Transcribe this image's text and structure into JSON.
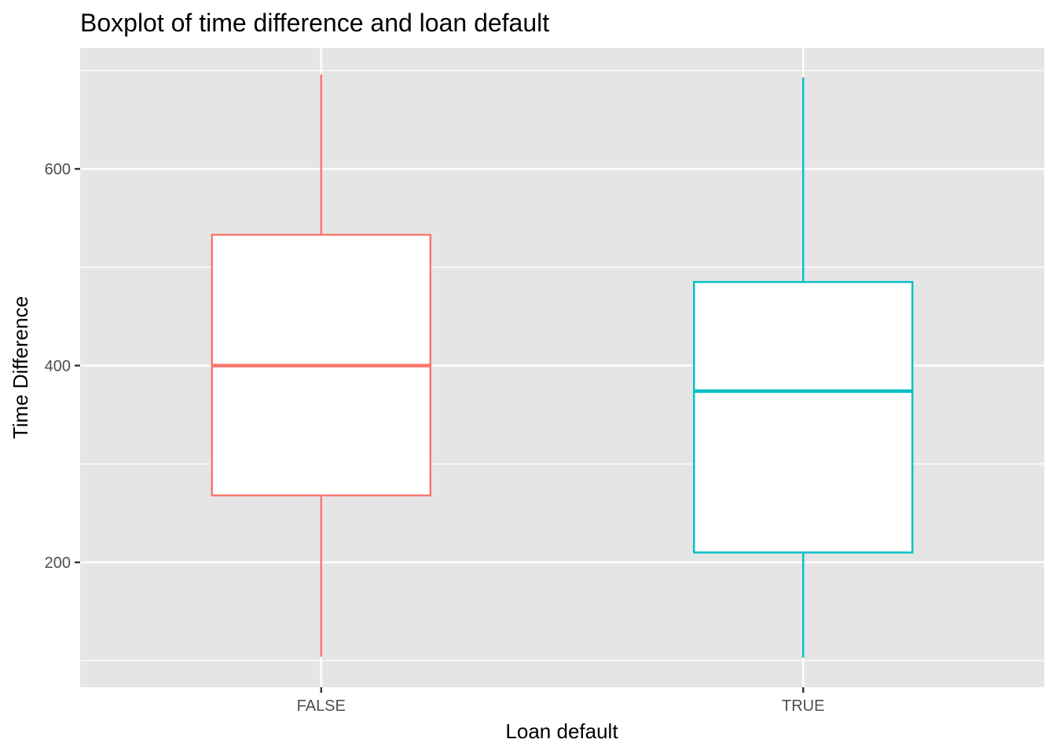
{
  "chart_data": {
    "type": "boxplot",
    "title": "Boxplot of time difference and loan default",
    "xlabel": "Loan default",
    "ylabel": "Time Difference",
    "ylim": [
      73,
      723
    ],
    "yticks": [
      200,
      400,
      600
    ],
    "grid": true,
    "legend": "none",
    "categories": [
      "FALSE",
      "TRUE"
    ],
    "boxes": [
      {
        "category": "FALSE",
        "min": 104,
        "q1": 268,
        "median": 400,
        "q3": 533,
        "max": 696,
        "color": "#F8766D"
      },
      {
        "category": "TRUE",
        "min": 103,
        "q1": 210,
        "median": 374,
        "q3": 485,
        "max": 693,
        "color": "#00BFC4"
      }
    ]
  }
}
